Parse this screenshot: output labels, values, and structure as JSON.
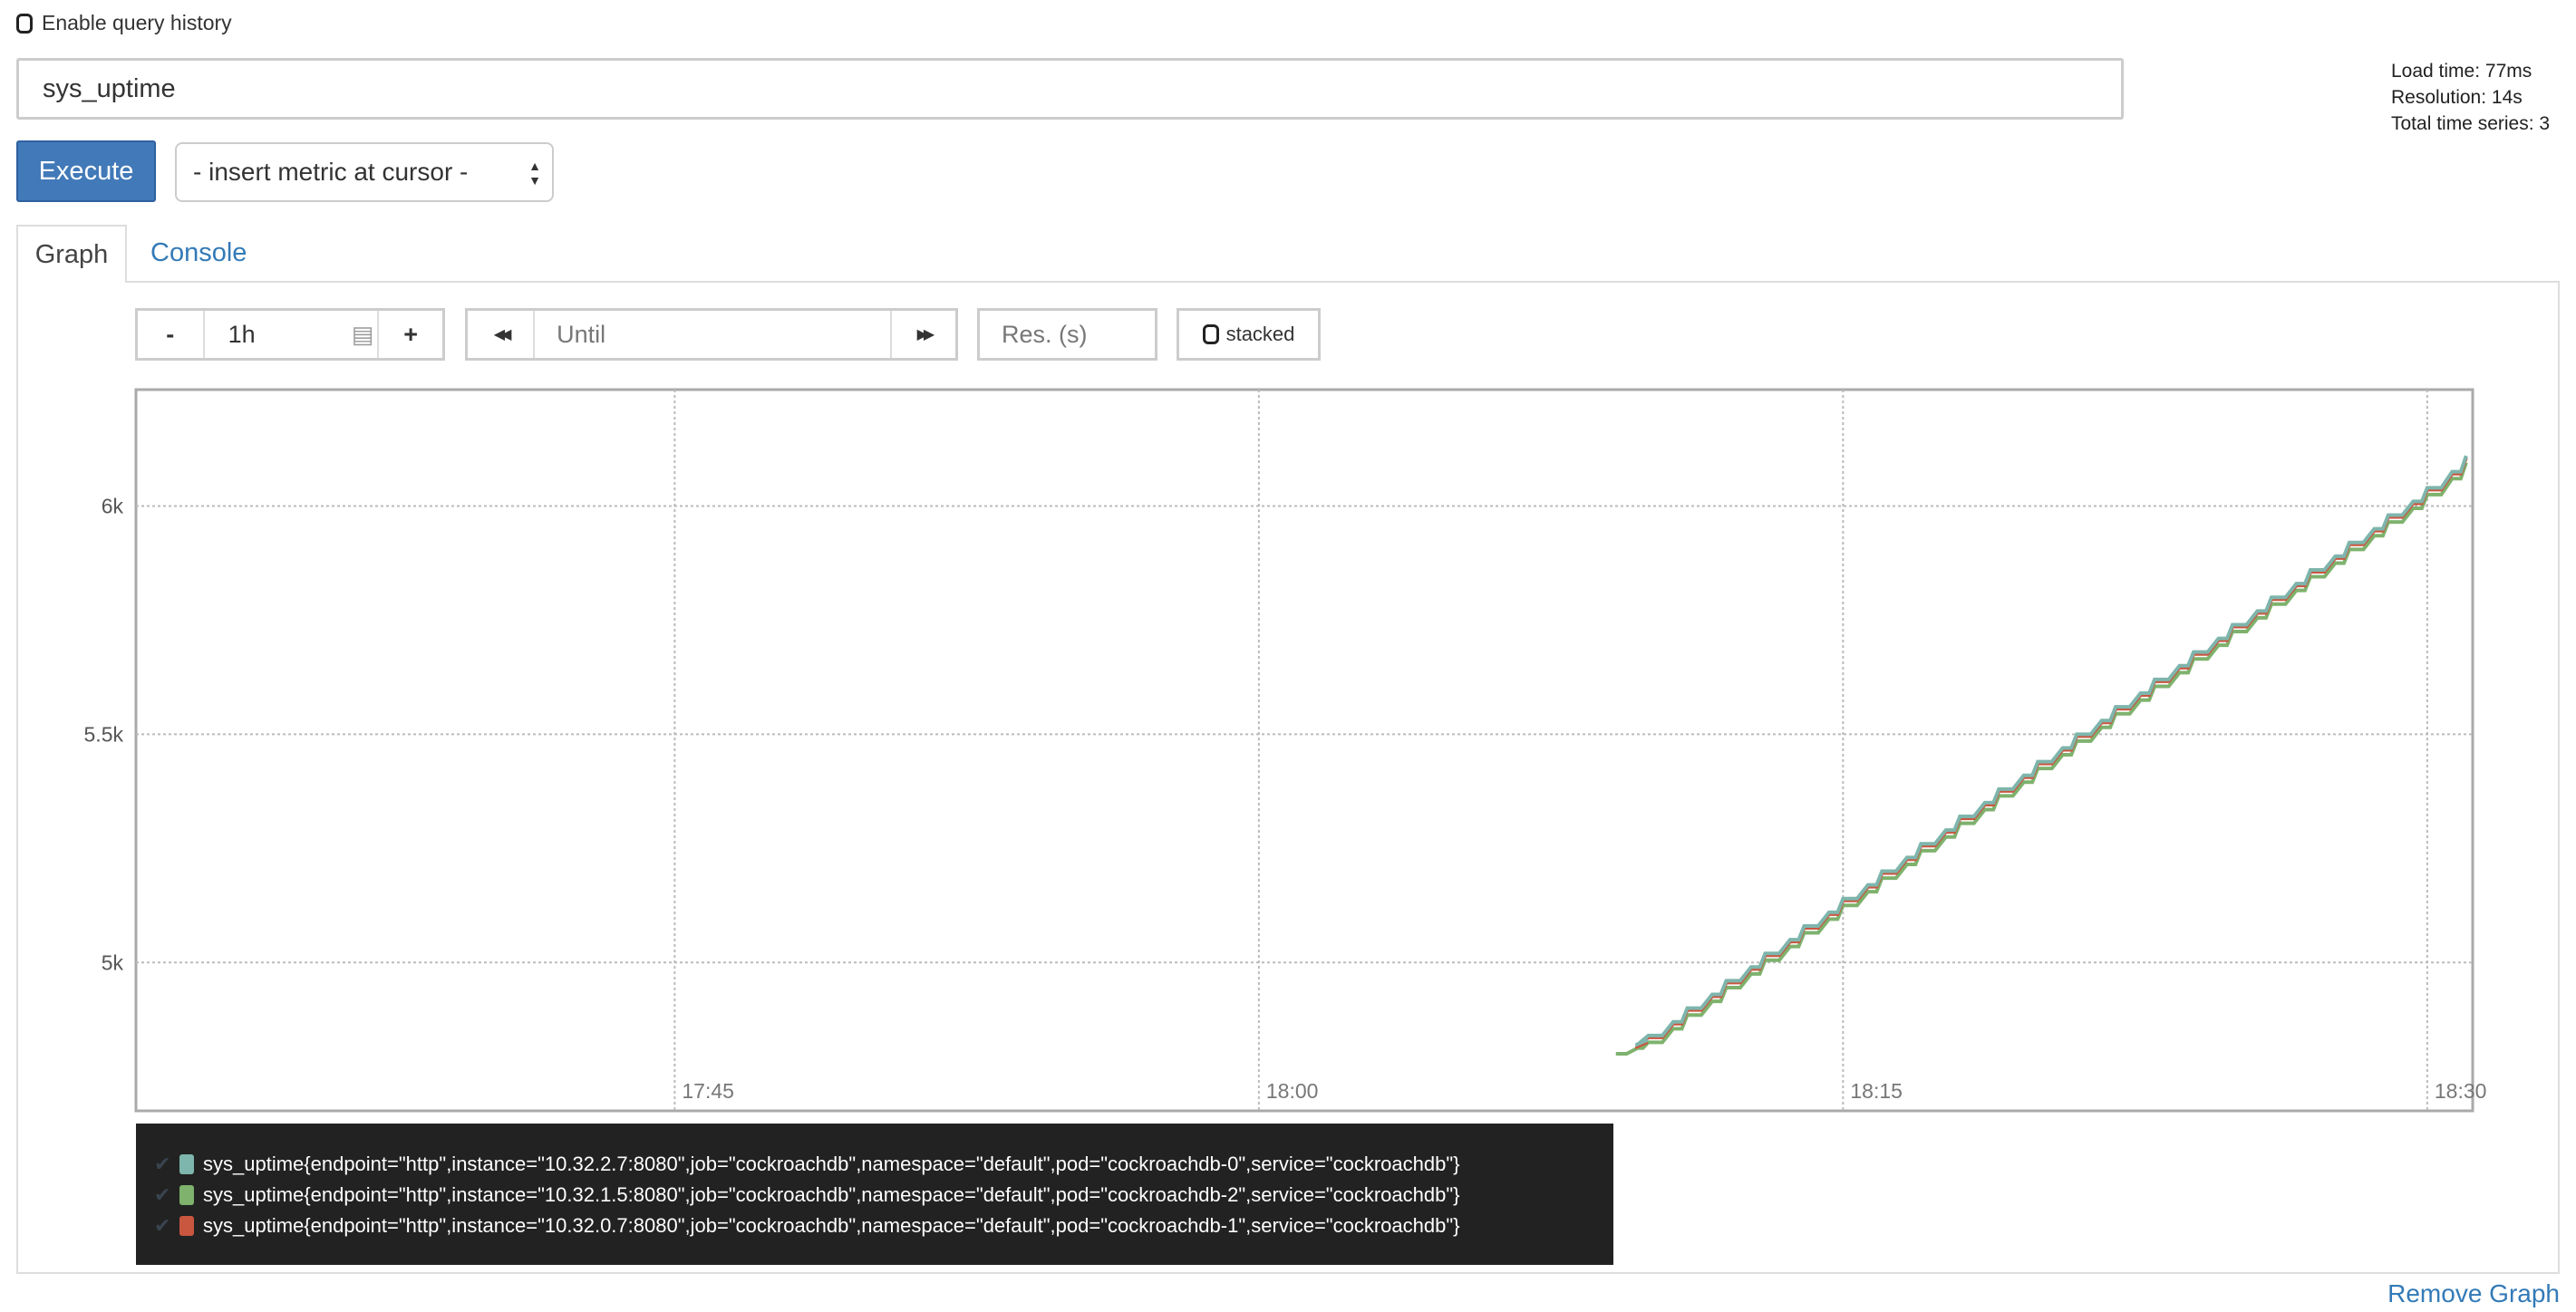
{
  "query_history": {
    "label": "Enable query history",
    "checked": false
  },
  "expression": {
    "value": "sys_uptime"
  },
  "stats": {
    "load_time": "Load time: 77ms",
    "resolution": "Resolution: 14s",
    "total_series": "Total time series: 3"
  },
  "execute_label": "Execute",
  "metric_select": {
    "selected": "- insert metric at cursor -"
  },
  "tabs": [
    {
      "label": "Graph",
      "active": true
    },
    {
      "label": "Console",
      "active": false
    }
  ],
  "controls": {
    "minus": "-",
    "range": "1h",
    "plus": "+",
    "back": "◀◀",
    "until_placeholder": "Until",
    "forward": "▶▶",
    "res_placeholder": "Res. (s)",
    "stacked_label": "stacked"
  },
  "remove_graph": "Remove Graph",
  "colors": {
    "accent": "#4279b8",
    "link": "#337ab7",
    "legend_bg": "#222222"
  },
  "chart_data": {
    "type": "line",
    "step": true,
    "grid": true,
    "xlim": [
      "17:31:10",
      "18:31:10"
    ],
    "ylim": [
      4675,
      6255
    ],
    "x_ticks": [
      "17:45",
      "18:00",
      "18:15",
      "18:30"
    ],
    "y_ticks": [
      {
        "value": 5000,
        "label": "5k"
      },
      {
        "value": 5500,
        "label": "5.5k"
      },
      {
        "value": 6000,
        "label": "6k"
      }
    ],
    "legend_placement": "bottom",
    "series": [
      {
        "name": "sys_uptime{endpoint=\"http\",instance=\"10.32.2.7:8080\",job=\"cockroachdb\",namespace=\"default\",pod=\"cockroachdb-0\",service=\"cockroachdb\"}",
        "color": "#7eb5ac",
        "points": [
          [
            "18:09:40",
            4820
          ],
          [
            "18:10:00",
            4840
          ],
          [
            "18:11:00",
            4900
          ],
          [
            "18:12:00",
            4960
          ],
          [
            "18:13:00",
            5020
          ],
          [
            "18:14:00",
            5080
          ],
          [
            "18:15:00",
            5140
          ],
          [
            "18:16:00",
            5200
          ],
          [
            "18:17:00",
            5260
          ],
          [
            "18:18:00",
            5320
          ],
          [
            "18:19:00",
            5380
          ],
          [
            "18:20:00",
            5440
          ],
          [
            "18:21:00",
            5500
          ],
          [
            "18:22:00",
            5560
          ],
          [
            "18:23:00",
            5620
          ],
          [
            "18:24:00",
            5680
          ],
          [
            "18:25:00",
            5740
          ],
          [
            "18:26:00",
            5800
          ],
          [
            "18:27:00",
            5860
          ],
          [
            "18:28:00",
            5920
          ],
          [
            "18:29:00",
            5980
          ],
          [
            "18:30:00",
            6040
          ],
          [
            "18:31:00",
            6110
          ]
        ]
      },
      {
        "name": "sys_uptime{endpoint=\"http\",instance=\"10.32.1.5:8080\",job=\"cockroachdb\",namespace=\"default\",pod=\"cockroachdb-2\",service=\"cockroachdb\"}",
        "color": "#7eb26d",
        "points": [
          [
            "18:09:10",
            4800
          ],
          [
            "18:10:00",
            4825
          ],
          [
            "18:11:00",
            4885
          ],
          [
            "18:12:00",
            4945
          ],
          [
            "18:13:00",
            5005
          ],
          [
            "18:14:00",
            5065
          ],
          [
            "18:15:00",
            5125
          ],
          [
            "18:16:00",
            5185
          ],
          [
            "18:17:00",
            5245
          ],
          [
            "18:18:00",
            5305
          ],
          [
            "18:19:00",
            5365
          ],
          [
            "18:20:00",
            5425
          ],
          [
            "18:21:00",
            5485
          ],
          [
            "18:22:00",
            5545
          ],
          [
            "18:23:00",
            5605
          ],
          [
            "18:24:00",
            5665
          ],
          [
            "18:25:00",
            5725
          ],
          [
            "18:26:00",
            5785
          ],
          [
            "18:27:00",
            5845
          ],
          [
            "18:28:00",
            5905
          ],
          [
            "18:29:00",
            5965
          ],
          [
            "18:30:00",
            6025
          ],
          [
            "18:31:00",
            6095
          ]
        ]
      },
      {
        "name": "sys_uptime{endpoint=\"http\",instance=\"10.32.0.7:8080\",job=\"cockroachdb\",namespace=\"default\",pod=\"cockroachdb-1\",service=\"cockroachdb\"}",
        "color": "#c9563f",
        "points": [
          [
            "18:09:40",
            4815
          ],
          [
            "18:10:00",
            4836
          ],
          [
            "18:11:00",
            4896
          ],
          [
            "18:12:00",
            4956
          ],
          [
            "18:13:00",
            5016
          ],
          [
            "18:14:00",
            5076
          ],
          [
            "18:15:00",
            5136
          ],
          [
            "18:16:00",
            5196
          ],
          [
            "18:17:00",
            5256
          ],
          [
            "18:18:00",
            5316
          ],
          [
            "18:19:00",
            5376
          ],
          [
            "18:20:00",
            5436
          ],
          [
            "18:21:00",
            5496
          ],
          [
            "18:22:00",
            5556
          ],
          [
            "18:23:00",
            5616
          ],
          [
            "18:24:00",
            5676
          ],
          [
            "18:25:00",
            5736
          ],
          [
            "18:26:00",
            5796
          ],
          [
            "18:27:00",
            5856
          ],
          [
            "18:28:00",
            5916
          ],
          [
            "18:29:00",
            5976
          ],
          [
            "18:30:00",
            6036
          ],
          [
            "18:31:00",
            6106
          ]
        ]
      }
    ]
  }
}
